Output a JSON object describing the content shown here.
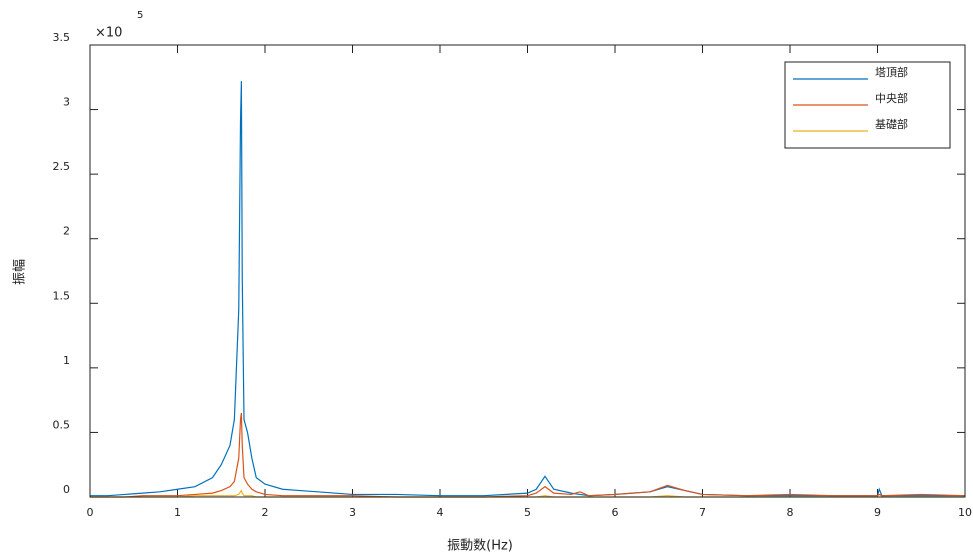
{
  "chart_data": {
    "type": "line",
    "xlabel": "振動数(Hz)",
    "ylabel": "振幅",
    "y_multiplier": {
      "base": "×10",
      "exponent": "5"
    },
    "x": [
      0,
      0.2,
      0.4,
      0.6,
      0.8,
      1.0,
      1.2,
      1.4,
      1.5,
      1.6,
      1.65,
      1.7,
      1.72,
      1.73,
      1.74,
      1.76,
      1.8,
      1.85,
      1.9,
      2.0,
      2.2,
      2.4,
      2.6,
      3.0,
      3.5,
      4.0,
      4.5,
      5.0,
      5.1,
      5.2,
      5.3,
      5.5,
      5.6,
      5.7,
      6.0,
      6.4,
      6.6,
      6.8,
      7.0,
      7.5,
      8.0,
      8.5,
      9.0,
      9.02,
      9.05,
      9.5,
      10
    ],
    "series": [
      {
        "name": "塔頂部",
        "color": "#0072bd",
        "values": [
          0.01,
          0.01,
          0.02,
          0.03,
          0.04,
          0.06,
          0.08,
          0.15,
          0.25,
          0.4,
          0.6,
          1.45,
          2.9,
          3.22,
          1.7,
          0.6,
          0.5,
          0.3,
          0.15,
          0.1,
          0.06,
          0.05,
          0.04,
          0.02,
          0.02,
          0.01,
          0.01,
          0.03,
          0.06,
          0.16,
          0.06,
          0.03,
          0.02,
          0.01,
          0.02,
          0.04,
          0.08,
          0.05,
          0.02,
          0.01,
          0.01,
          0.01,
          0.01,
          0.06,
          0.01,
          0.01,
          0.01
        ]
      },
      {
        "name": "中央部",
        "color": "#d95319",
        "values": [
          0,
          0,
          0,
          0.01,
          0.01,
          0.01,
          0.02,
          0.03,
          0.05,
          0.08,
          0.12,
          0.3,
          0.6,
          0.65,
          0.4,
          0.15,
          0.1,
          0.06,
          0.04,
          0.02,
          0.01,
          0.01,
          0.01,
          0.01,
          0,
          0,
          0,
          0.01,
          0.03,
          0.08,
          0.03,
          0.02,
          0.04,
          0.01,
          0.02,
          0.04,
          0.09,
          0.05,
          0.02,
          0.01,
          0.02,
          0.01,
          0.01,
          0.02,
          0.01,
          0.02,
          0.01
        ]
      },
      {
        "name": "基礎部",
        "color": "#edb120",
        "values": [
          0,
          0,
          0,
          0,
          0,
          0,
          0.01,
          0.01,
          0.01,
          0.01,
          0.01,
          0.02,
          0.04,
          0.05,
          0.03,
          0.01,
          0.01,
          0.01,
          0,
          0,
          0,
          0,
          0,
          0,
          0,
          0,
          0,
          0,
          0,
          0.01,
          0,
          0,
          0,
          0,
          0,
          0,
          0.01,
          0,
          0,
          0,
          0,
          0,
          0,
          0,
          0,
          0,
          0
        ]
      }
    ],
    "xlim": [
      0,
      10
    ],
    "xticks": [
      0,
      1,
      2,
      3,
      4,
      5,
      6,
      7,
      8,
      9,
      10
    ],
    "ylim": [
      0,
      3.5
    ],
    "yticks": [
      0,
      0.5,
      1,
      1.5,
      2,
      2.5,
      3,
      3.5
    ],
    "grid": false,
    "legend": "northeast"
  }
}
